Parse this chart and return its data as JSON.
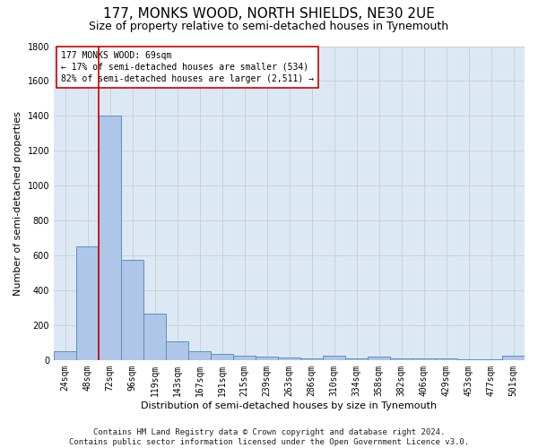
{
  "title1": "177, MONKS WOOD, NORTH SHIELDS, NE30 2UE",
  "title2": "Size of property relative to semi-detached houses in Tynemouth",
  "xlabel": "Distribution of semi-detached houses by size in Tynemouth",
  "ylabel": "Number of semi-detached properties",
  "categories": [
    "24sqm",
    "48sqm",
    "72sqm",
    "96sqm",
    "119sqm",
    "143sqm",
    "167sqm",
    "191sqm",
    "215sqm",
    "239sqm",
    "263sqm",
    "286sqm",
    "310sqm",
    "334sqm",
    "358sqm",
    "382sqm",
    "406sqm",
    "429sqm",
    "453sqm",
    "477sqm",
    "501sqm"
  ],
  "values": [
    50,
    650,
    1400,
    575,
    265,
    105,
    50,
    35,
    25,
    20,
    15,
    10,
    25,
    10,
    20,
    10,
    10,
    10,
    5,
    5,
    25
  ],
  "bar_color": "#aec6e8",
  "bar_edge_color": "#5a8fc0",
  "grid_color": "#cccccc",
  "bg_color": "#dce9f5",
  "vline_x": 1.5,
  "vline_color": "#cc0000",
  "annotation_line1": "177 MONKS WOOD: 69sqm",
  "annotation_line2": "← 17% of semi-detached houses are smaller (534)",
  "annotation_line3": "82% of semi-detached houses are larger (2,511) →",
  "annotation_box_color": "#cc0000",
  "ylim": [
    0,
    1800
  ],
  "yticks": [
    0,
    200,
    400,
    600,
    800,
    1000,
    1200,
    1400,
    1600,
    1800
  ],
  "footer": "Contains HM Land Registry data © Crown copyright and database right 2024.\nContains public sector information licensed under the Open Government Licence v3.0.",
  "title1_fontsize": 11,
  "title2_fontsize": 9,
  "xlabel_fontsize": 8,
  "ylabel_fontsize": 8,
  "tick_fontsize": 7,
  "annotation_fontsize": 7,
  "footer_fontsize": 6.5
}
